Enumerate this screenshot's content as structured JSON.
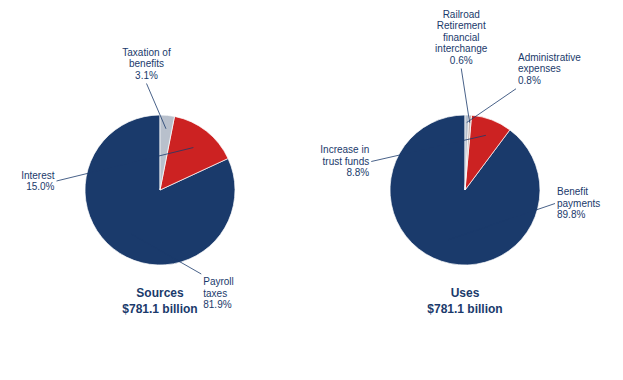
{
  "chart_data": [
    {
      "type": "pie",
      "title": "Sources",
      "subtitle": "$781.1 billion",
      "categories": [
        "Payroll\ntaxes",
        "Interest",
        "Taxation of\nbenefits"
      ],
      "values": [
        81.9,
        15.0,
        3.1
      ],
      "value_labels": [
        "81.9%",
        "15.0%",
        "3.1%"
      ],
      "colors": [
        "#1a3a6b",
        "#cc2222",
        "#b8c0cc"
      ],
      "color": "#1a3a6b",
      "data_labels": true
    },
    {
      "type": "pie",
      "title": "Uses",
      "subtitle": "$781.1 billion",
      "categories": [
        "Benefit\npayments",
        "Increase in\ntrust funds",
        "Railroad\nRetirement\nfinancial\ninterchange",
        "Administrative\nexpenses"
      ],
      "values": [
        89.8,
        8.8,
        0.6,
        0.8
      ],
      "value_labels": [
        "89.8%",
        "8.8%",
        "0.6%",
        "0.8%"
      ],
      "colors": [
        "#1a3a6b",
        "#cc2222",
        "#c8b4b0",
        "#b8c0cc"
      ],
      "color": "#1a3a6b",
      "data_labels": true
    }
  ]
}
